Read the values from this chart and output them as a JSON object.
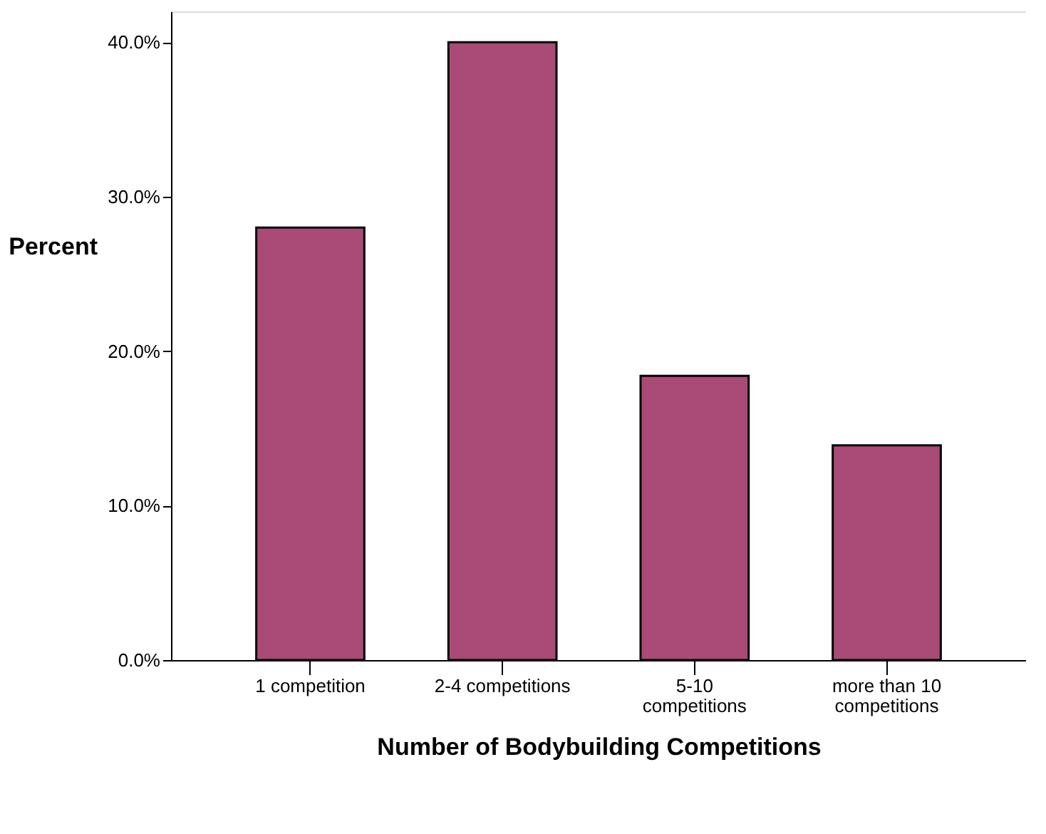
{
  "chart_data": {
    "type": "bar",
    "xlabel": "Number of Bodybuilding Competitions",
    "ylabel": "Percent",
    "categories": [
      "1 competition",
      "2-4 competitions",
      "5-10 competitions",
      "more than 10 competitions"
    ],
    "values": [
      28.0,
      40.0,
      18.4,
      13.9
    ],
    "color": "#aa4a76",
    "ylim": [
      0,
      42
    ],
    "yticks": [
      {
        "value": 0,
        "label": "0.0%"
      },
      {
        "value": 10,
        "label": "10.0%"
      },
      {
        "value": 20,
        "label": "20.0%"
      },
      {
        "value": 30,
        "label": "30.0%"
      },
      {
        "value": 40,
        "label": "40.0%"
      }
    ],
    "grid": false
  }
}
